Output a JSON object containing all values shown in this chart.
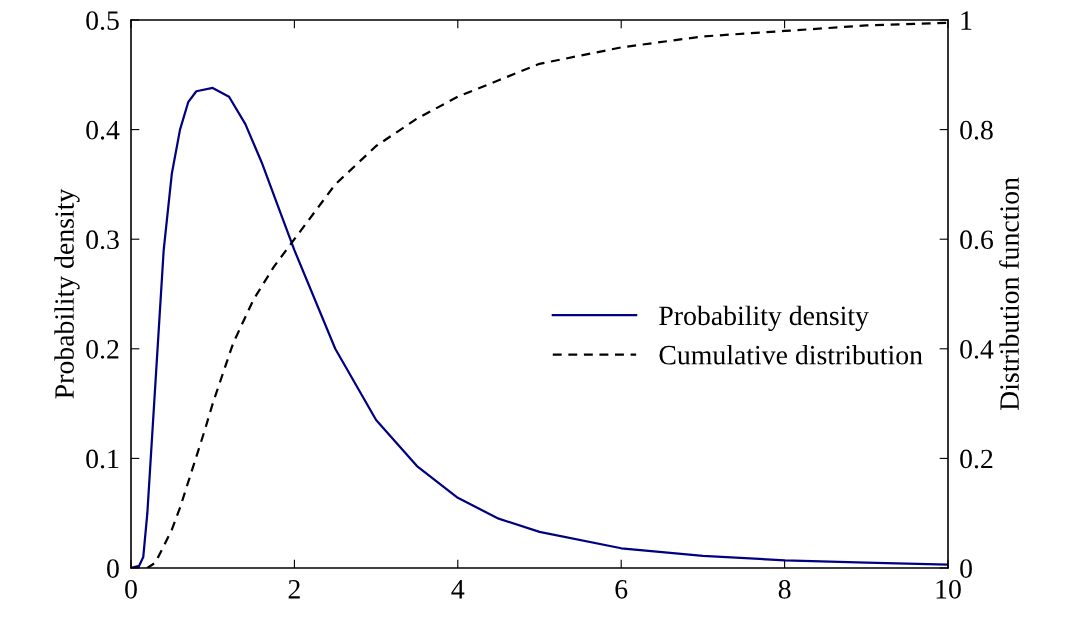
{
  "chart_data": {
    "type": "line",
    "ylabel": "Probability density",
    "y2label": "Distribution function",
    "xlim": [
      0,
      10
    ],
    "xticks": [
      0,
      2,
      4,
      6,
      8,
      10
    ],
    "ylim": [
      0,
      0.5
    ],
    "yticks": [
      0,
      0.1,
      0.2,
      0.3,
      0.4,
      0.5
    ],
    "y2lim": [
      0,
      1
    ],
    "y2ticks": [
      0,
      0.2,
      0.4,
      0.6,
      0.8,
      1
    ],
    "grid": false,
    "legend": "right",
    "marker": "none",
    "series": [
      {
        "name": "Probability density",
        "color": "#000080",
        "line_style": "solid",
        "x": [
          0,
          0.1,
          0.15,
          0.2,
          0.3,
          0.4,
          0.5,
          0.6,
          0.7,
          0.8,
          1.0,
          1.2,
          1.4,
          1.6,
          1.8,
          2.0,
          2.5,
          3.0,
          3.5,
          4.0,
          4.5,
          5,
          6,
          7,
          8,
          9,
          10
        ],
        "values": [
          0,
          0.002,
          0.01,
          0.05,
          0.17,
          0.29,
          0.36,
          0.4,
          0.425,
          0.435,
          0.438,
          0.43,
          0.405,
          0.37,
          0.33,
          0.29,
          0.2,
          0.135,
          0.093,
          0.064,
          0.045,
          0.033,
          0.018,
          0.011,
          0.007,
          0.005,
          0.003
        ]
      },
      {
        "name": "Cumulative distribution",
        "color": "#000000",
        "line_style": "dashed",
        "axis": "y2",
        "x": [
          0,
          0.2,
          0.3,
          0.5,
          0.6,
          0.75,
          0.9,
          1.0,
          1.25,
          1.5,
          1.75,
          2.0,
          2.25,
          2.5,
          3.0,
          3.5,
          4.0,
          4.5,
          5,
          6,
          7,
          8,
          9,
          10
        ],
        "values": [
          0,
          0,
          0.01,
          0.07,
          0.11,
          0.18,
          0.25,
          0.3,
          0.41,
          0.49,
          0.55,
          0.6,
          0.65,
          0.7,
          0.77,
          0.82,
          0.86,
          0.89,
          0.92,
          0.95,
          0.97,
          0.98,
          0.99,
          0.995
        ]
      }
    ]
  }
}
